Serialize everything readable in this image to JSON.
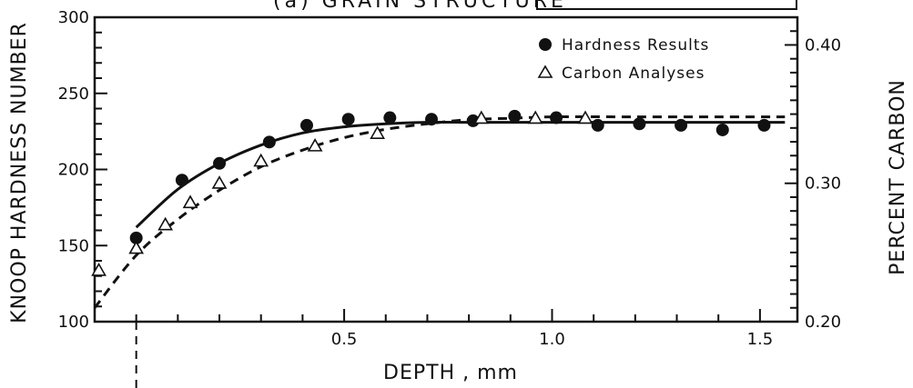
{
  "chart_data": {
    "type": "scatter",
    "title": "(a) GRAIN STRUCTURE",
    "xlabel": "DEPTH , mm",
    "ylabel": "KNOOP HARDNESS NUMBER",
    "y2label": "PERCENT CARBON",
    "xlim": [
      -0.1,
      1.59
    ],
    "ylim": [
      100,
      300
    ],
    "y2lim": [
      0.2,
      0.42
    ],
    "x_ticks": [
      0.5,
      1.0,
      1.5
    ],
    "x_tick_labels": [
      "0.5",
      "1.0",
      "1.5"
    ],
    "y_ticks": [
      100,
      150,
      200,
      250,
      300
    ],
    "y_tick_labels": [
      "100",
      "150",
      "200",
      "250",
      "300"
    ],
    "y2_ticks": [
      0.2,
      0.3,
      0.4
    ],
    "y2_tick_labels": [
      "0.20",
      "0.30",
      "0.40"
    ],
    "legend_position": "top-right",
    "grid": false,
    "series": [
      {
        "name": "Hardness Results",
        "axis": "left",
        "marker": "filled-circle",
        "x": [
          0.0,
          0.11,
          0.2,
          0.32,
          0.41,
          0.51,
          0.61,
          0.71,
          0.81,
          0.91,
          1.01,
          1.11,
          1.21,
          1.31,
          1.41,
          1.51
        ],
        "y": [
          155,
          193,
          204,
          218,
          229,
          233,
          234,
          233,
          232,
          235,
          234,
          229,
          230,
          229,
          226,
          229
        ]
      },
      {
        "name": "Carbon Analyses",
        "axis": "right",
        "marker": "open-triangle",
        "x": [
          -0.09,
          0.0,
          0.07,
          0.13,
          0.2,
          0.3,
          0.43,
          0.58,
          0.83,
          0.96,
          1.08
        ],
        "y": [
          0.237,
          0.253,
          0.27,
          0.286,
          0.3,
          0.316,
          0.327,
          0.336,
          0.347,
          0.347,
          0.347
        ]
      }
    ],
    "fit_curves": [
      {
        "of": "Hardness Results",
        "style": "solid",
        "axis": "left",
        "x": [
          0.0,
          0.1,
          0.2,
          0.3,
          0.4,
          0.5,
          0.6,
          0.7,
          0.8,
          0.9,
          1.0,
          1.2,
          1.4,
          1.56
        ],
        "y": [
          162,
          187,
          204,
          216,
          224,
          228,
          230,
          231,
          231,
          231,
          231,
          231,
          231,
          231
        ]
      },
      {
        "of": "Carbon Analyses",
        "style": "dashed",
        "axis": "right",
        "x": [
          -0.1,
          0.0,
          0.1,
          0.2,
          0.3,
          0.4,
          0.5,
          0.6,
          0.7,
          0.8,
          0.9,
          1.0,
          1.2,
          1.4,
          1.56
        ],
        "y": [
          0.21,
          0.248,
          0.274,
          0.295,
          0.312,
          0.324,
          0.333,
          0.339,
          0.343,
          0.346,
          0.347,
          0.348,
          0.348,
          0.348,
          0.348
        ]
      }
    ],
    "reference_line": {
      "x": 0.0,
      "style": "dashed",
      "orientation": "vertical"
    }
  }
}
